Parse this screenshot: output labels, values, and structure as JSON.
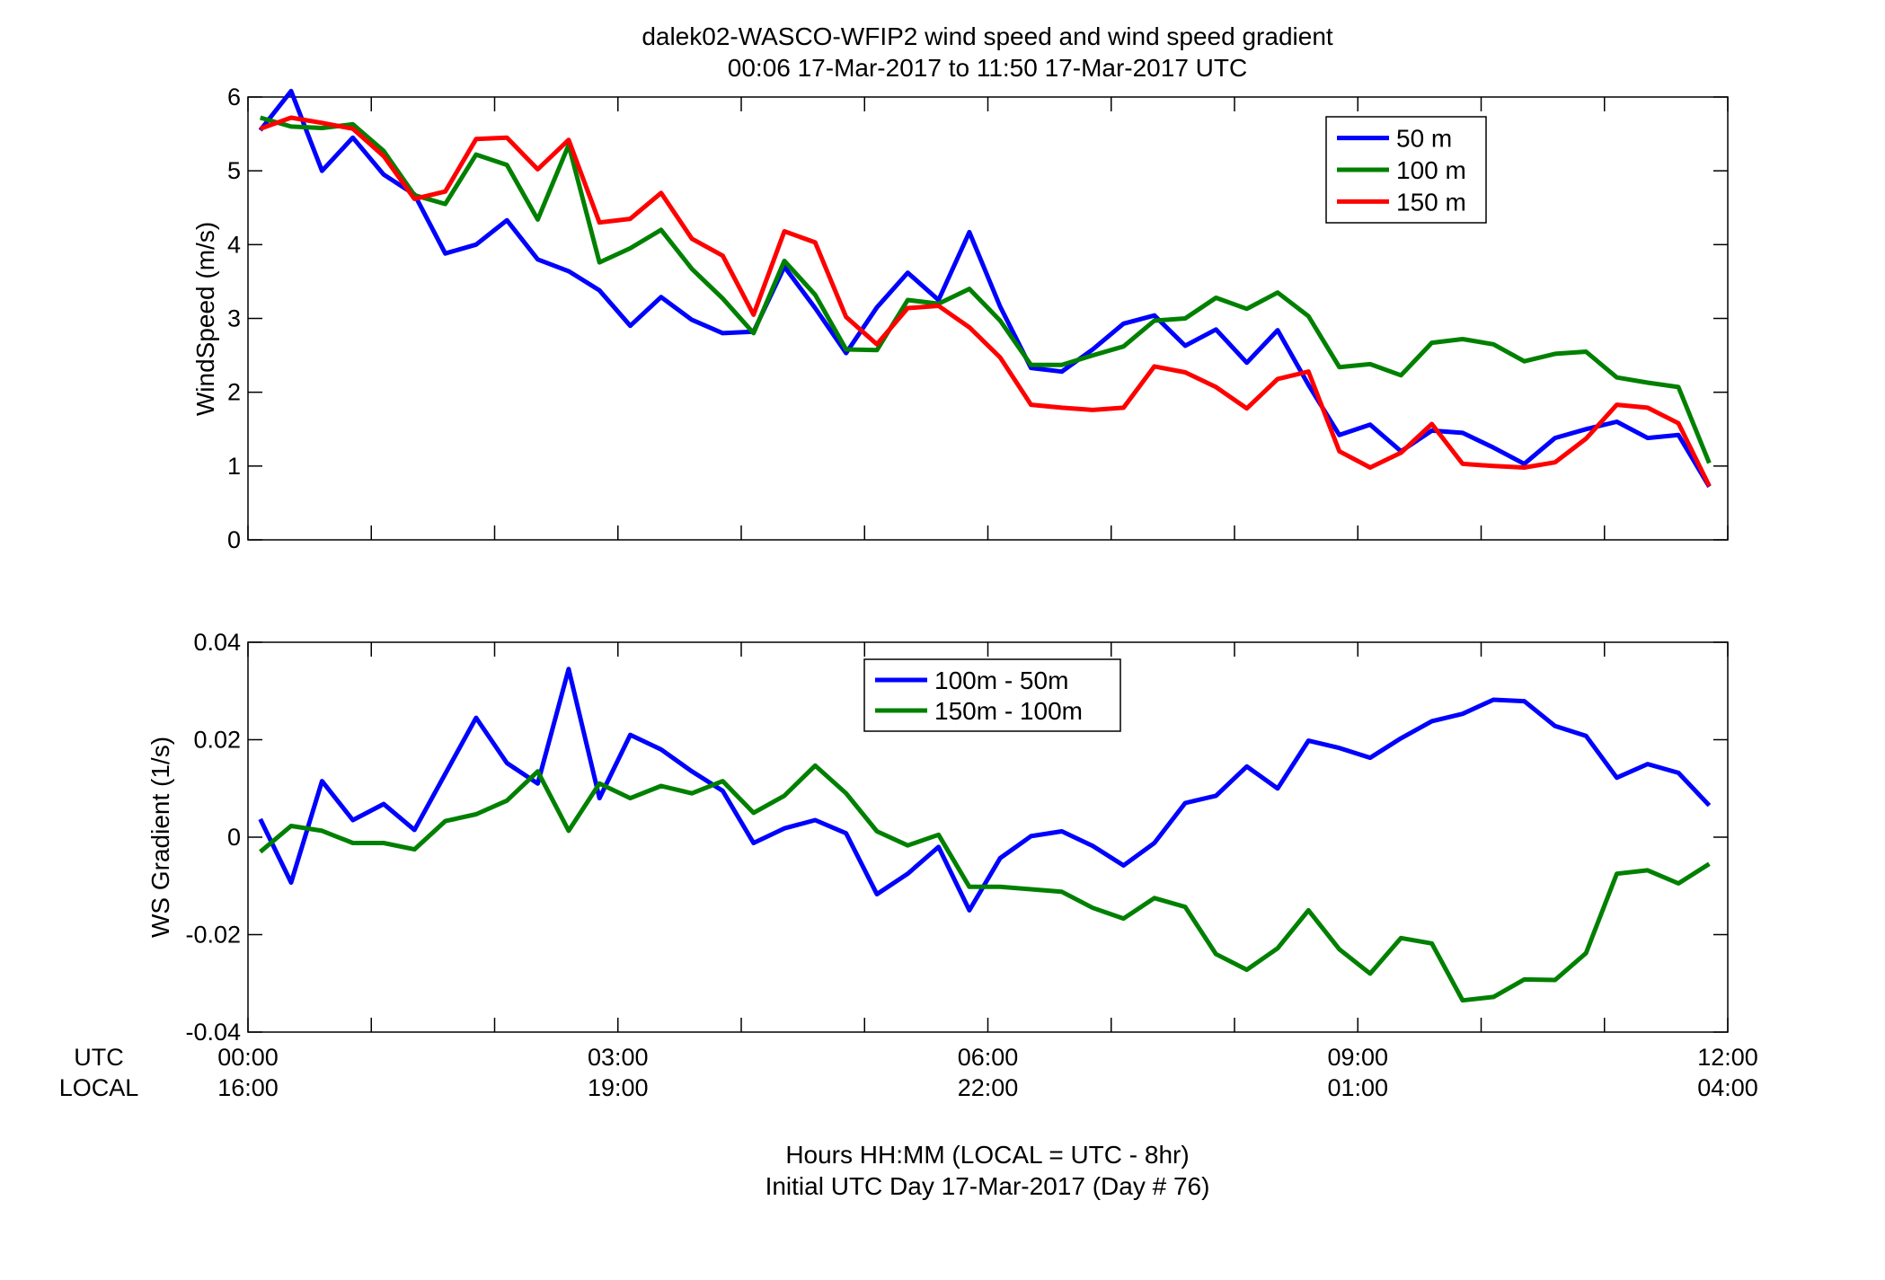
{
  "figure": {
    "title_line1": "dalek02-WASCO-WFIP2  wind speed and wind speed gradient",
    "title_line2": "00:06 17-Mar-2017 to 11:50 17-Mar-2017  UTC",
    "xlabel_line1": "Hours HH:MM  (LOCAL = UTC - 8hr)",
    "xlabel_line2": "Initial UTC Day 17-Mar-2017 (Day # 76)",
    "row_label_utc": "UTC",
    "row_label_local": "LOCAL",
    "x_ticks_utc": [
      "00:00",
      "03:00",
      "06:00",
      "09:00",
      "12:00"
    ],
    "x_ticks_local": [
      "16:00",
      "19:00",
      "22:00",
      "01:00",
      "04:00"
    ]
  },
  "chart_data": [
    {
      "type": "line",
      "ylabel": "WindSpeed (m/s)",
      "xlim": [
        0,
        12
      ],
      "ylim": [
        0,
        6
      ],
      "yticks": [
        "0",
        "1",
        "2",
        "3",
        "4",
        "5",
        "6"
      ],
      "legend_position": "top-right",
      "x": [
        0.1,
        0.35,
        0.6,
        0.85,
        1.1,
        1.35,
        1.6,
        1.85,
        2.1,
        2.35,
        2.6,
        2.85,
        3.1,
        3.35,
        3.6,
        3.85,
        4.1,
        4.35,
        4.6,
        4.85,
        5.1,
        5.35,
        5.6,
        5.85,
        6.1,
        6.35,
        6.6,
        6.85,
        7.1,
        7.35,
        7.6,
        7.85,
        8.1,
        8.35,
        8.6,
        8.85,
        9.1,
        9.35,
        9.6,
        9.85,
        10.1,
        10.35,
        10.6,
        10.85,
        11.1,
        11.35,
        11.6,
        11.85
      ],
      "series": [
        {
          "name": "50 m",
          "color": "#0000ff",
          "values": [
            5.55,
            6.08,
            5.0,
            5.45,
            4.95,
            4.68,
            3.88,
            4.0,
            4.33,
            3.8,
            3.64,
            3.38,
            2.9,
            3.29,
            2.98,
            2.8,
            2.82,
            3.7,
            3.14,
            2.53,
            3.15,
            3.62,
            3.25,
            4.17,
            3.16,
            2.33,
            2.28,
            2.58,
            2.93,
            3.04,
            2.63,
            2.85,
            2.4,
            2.84,
            2.1,
            1.42,
            1.56,
            1.2,
            1.48,
            1.45,
            1.25,
            1.03,
            1.38,
            1.5,
            1.6,
            1.38,
            1.42,
            0.72
          ]
        },
        {
          "name": "100 m",
          "color": "#008000",
          "values": [
            5.72,
            5.6,
            5.58,
            5.63,
            5.27,
            4.67,
            4.55,
            5.22,
            5.08,
            4.34,
            5.35,
            3.76,
            3.95,
            4.2,
            3.67,
            3.27,
            2.8,
            3.78,
            3.32,
            2.58,
            2.57,
            3.25,
            3.2,
            3.4,
            2.97,
            2.37,
            2.37,
            2.5,
            2.62,
            2.97,
            3.0,
            3.28,
            3.13,
            3.35,
            3.03,
            2.34,
            2.38,
            2.23,
            2.67,
            2.72,
            2.65,
            2.42,
            2.52,
            2.55,
            2.2,
            2.13,
            2.07,
            1.04
          ]
        },
        {
          "name": "150 m",
          "color": "#ff0000",
          "values": [
            5.57,
            5.72,
            5.65,
            5.57,
            5.2,
            4.62,
            4.72,
            5.43,
            5.45,
            5.02,
            5.42,
            4.3,
            4.35,
            4.7,
            4.08,
            3.85,
            3.05,
            4.18,
            4.03,
            3.02,
            2.65,
            3.14,
            3.17,
            2.88,
            2.47,
            1.83,
            1.79,
            1.76,
            1.79,
            2.35,
            2.27,
            2.07,
            1.78,
            2.18,
            2.28,
            1.2,
            0.98,
            1.18,
            1.57,
            1.03,
            1.0,
            0.98,
            1.05,
            1.37,
            1.83,
            1.79,
            1.58,
            0.73
          ]
        }
      ]
    },
    {
      "type": "line",
      "ylabel": "WS Gradient (1/s)",
      "xlim": [
        0,
        12
      ],
      "ylim": [
        -0.04,
        0.04
      ],
      "yticks": [
        "-0.04",
        "-0.02",
        "0",
        "0.02",
        "0.04"
      ],
      "legend_position": "top-center",
      "x": [
        0.1,
        0.35,
        0.6,
        0.85,
        1.1,
        1.35,
        1.6,
        1.85,
        2.1,
        2.35,
        2.6,
        2.85,
        3.1,
        3.35,
        3.6,
        3.85,
        4.1,
        4.35,
        4.6,
        4.85,
        5.1,
        5.35,
        5.6,
        5.85,
        6.1,
        6.35,
        6.6,
        6.85,
        7.1,
        7.35,
        7.6,
        7.85,
        8.1,
        8.35,
        8.6,
        8.85,
        9.1,
        9.35,
        9.6,
        9.85,
        10.1,
        10.35,
        10.6,
        10.85,
        11.1,
        11.35,
        11.6,
        11.85
      ],
      "series": [
        {
          "name": "100m - 50m",
          "color": "#0000ff",
          "values": [
            0.0037,
            -0.0093,
            0.0115,
            0.0035,
            0.0068,
            0.0015,
            0.013,
            0.0245,
            0.0152,
            0.011,
            0.0345,
            0.008,
            0.021,
            0.018,
            0.0135,
            0.0095,
            -0.0012,
            0.0018,
            0.0035,
            0.0008,
            -0.0117,
            -0.0075,
            -0.002,
            -0.015,
            -0.0043,
            0.0002,
            0.0012,
            -0.0018,
            -0.0058,
            -0.0012,
            0.007,
            0.0085,
            0.0145,
            0.01,
            0.0198,
            0.0183,
            0.0163,
            0.0203,
            0.0238,
            0.0253,
            0.0282,
            0.0279,
            0.0228,
            0.0208,
            0.0122,
            0.015,
            0.0132,
            0.0065
          ]
        },
        {
          "name": "150m - 100m",
          "color": "#008000",
          "values": [
            -0.003,
            0.0023,
            0.0013,
            -0.0012,
            -0.0012,
            -0.0025,
            0.0033,
            0.0047,
            0.0075,
            0.0135,
            0.0013,
            0.011,
            0.008,
            0.0105,
            0.009,
            0.0115,
            0.005,
            0.0085,
            0.0147,
            0.009,
            0.0012,
            -0.0017,
            0.0005,
            -0.0102,
            -0.0102,
            -0.0107,
            -0.0112,
            -0.0145,
            -0.0167,
            -0.0125,
            -0.0143,
            -0.024,
            -0.0272,
            -0.0228,
            -0.015,
            -0.023,
            -0.028,
            -0.0207,
            -0.0218,
            -0.0335,
            -0.0328,
            -0.0292,
            -0.0293,
            -0.0238,
            -0.0075,
            -0.0068,
            -0.0095,
            -0.0055
          ]
        }
      ]
    }
  ]
}
